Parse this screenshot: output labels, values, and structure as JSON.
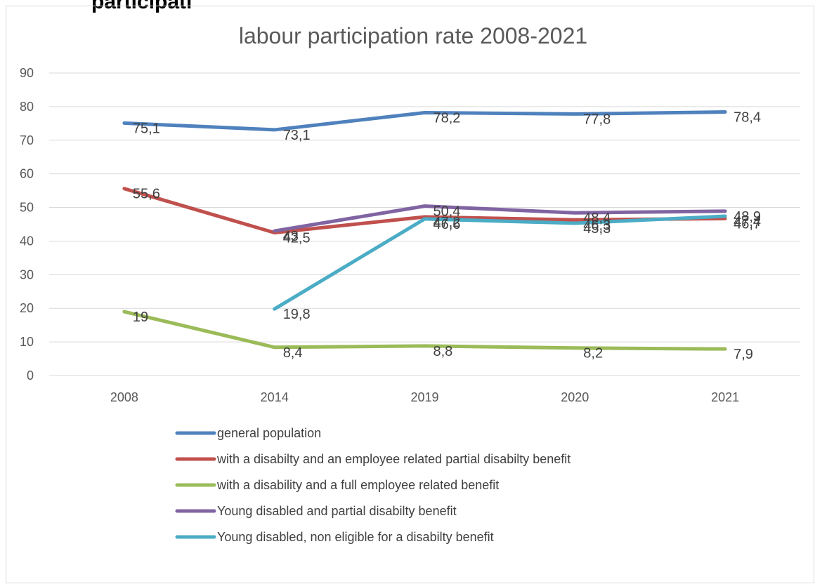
{
  "heading_fragment": "participati",
  "chart_data": {
    "type": "line",
    "title": "labour participation rate 2008-2021",
    "categories": [
      "2008",
      "2014",
      "2019",
      "2020",
      "2021"
    ],
    "ylim": [
      0,
      90
    ],
    "yticks": [
      0,
      10,
      20,
      30,
      40,
      50,
      60,
      70,
      80,
      90
    ],
    "grid": true,
    "legend_position": "bottom",
    "series": [
      {
        "name": "general population",
        "color": "#4f81bd",
        "values": [
          75.1,
          73.1,
          78.2,
          77.8,
          78.4
        ],
        "labels": [
          "75,1",
          "73,1",
          "78,2",
          "77,8",
          "78,4"
        ]
      },
      {
        "name": "with a disabilty and an employee related partial disabilty benefit",
        "color": "#c0504d",
        "values": [
          55.6,
          42.5,
          47.2,
          46.3,
          46.7
        ],
        "labels": [
          "55,6",
          "42,5",
          "47,2",
          "46,3",
          "46,7"
        ]
      },
      {
        "name": "with a disability and a full employee related benefit",
        "color": "#9bbb59",
        "values": [
          19,
          8.4,
          8.8,
          8.2,
          7.9
        ],
        "labels": [
          "19",
          "8,4",
          "8,8",
          "8,2",
          "7,9"
        ]
      },
      {
        "name": "Young disabled and partial disabilty benefit",
        "color": "#8064a2",
        "values": [
          null,
          43,
          50.4,
          48.4,
          48.9
        ],
        "labels": [
          null,
          "43",
          "50,4",
          "48,4",
          "48,9"
        ]
      },
      {
        "name": "Young disabled, non eligible for a disabilty benefit",
        "color": "#4bacc6",
        "values": [
          null,
          19.8,
          46.6,
          45.3,
          47.4
        ],
        "labels": [
          null,
          "19,8",
          "46,6",
          "45,3",
          "47,4"
        ]
      }
    ]
  }
}
